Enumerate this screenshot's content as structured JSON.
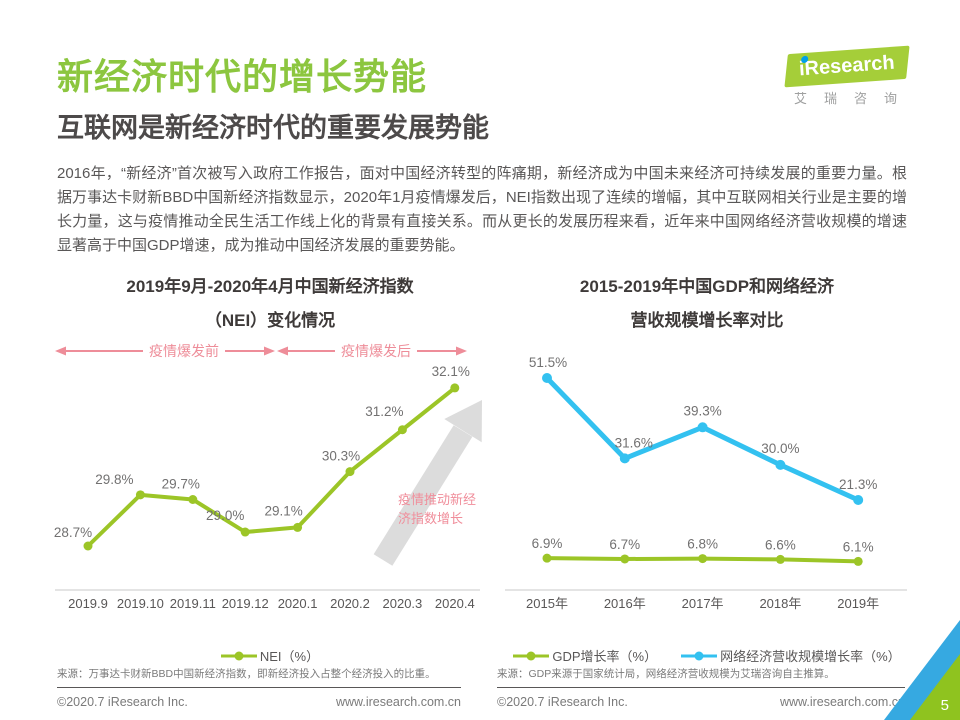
{
  "header": {
    "title": "新经济时代的增长势能",
    "subtitle": "互联网是新经济时代的重要发展势能",
    "body": "2016年，“新经济”首次被写入政府工作报告，面对中国经济转型的阵痛期，新经济成为中国未来经济可持续发展的重要力量。根据万事达卡财新BBD中国新经济指数显示，2020年1月疫情爆发后，NEI指数出现了连续的增幅，其中互联网相关行业是主要的增长力量，这与疫情推动全民生活工作线上化的背景有直接关系。而从更长的发展历程来看，近年来中国网络经济营收规模的增速显著高于中国GDP增速，成为推动中国经济发展的重要势能。"
  },
  "logo": {
    "brand_i": "i",
    "brand_rest": "Research",
    "caption": "艾瑞咨询"
  },
  "colors": {
    "title_green": "#8CC63F",
    "line_green": "#9CC527",
    "line_blue": "#33C1F0",
    "annotation_pink": "#EE8D99",
    "arrow_gray": "#DCDCDC",
    "corner_blue": "#36A9E1",
    "corner_green": "#8FC31F"
  },
  "chart_data": [
    {
      "type": "line",
      "title_line1": "2019年9月-2020年4月中国新经济指数",
      "title_line2": "（NEI）变化情况",
      "categories": [
        "2019.9",
        "2019.10",
        "2019.11",
        "2019.12",
        "2020.1",
        "2020.2",
        "2020.3",
        "2020.4"
      ],
      "series": [
        {
          "name": "NEI（%）",
          "color": "#9CC527",
          "values": [
            28.7,
            29.8,
            29.7,
            29.0,
            29.1,
            30.3,
            31.2,
            32.1
          ],
          "labels": [
            "28.7%",
            "29.8%",
            "29.7%",
            "29.0%",
            "29.1%",
            "30.3%",
            "31.2%",
            "32.1%"
          ]
        }
      ],
      "annotations": {
        "pre": "疫情爆发前",
        "post": "疫情爆发后",
        "arrow_note": "疫情推动新经济指数增长"
      },
      "ylim": [
        28.5,
        32.5
      ],
      "grid": false,
      "legend_position": "bottom",
      "source": "来源：万事达卡财新BBD中国新经济指数，即新经济投入占整个经济投入的比重。"
    },
    {
      "type": "line",
      "title_line1": "2015-2019年中国GDP和网络经济",
      "title_line2": "营收规模增长率对比",
      "categories": [
        "2015年",
        "2016年",
        "2017年",
        "2018年",
        "2019年"
      ],
      "series": [
        {
          "name": "GDP增长率（%）",
          "color": "#9CC527",
          "values": [
            6.9,
            6.7,
            6.8,
            6.6,
            6.1
          ],
          "labels": [
            "6.9%",
            "6.7%",
            "6.8%",
            "6.6%",
            "6.1%"
          ]
        },
        {
          "name": "网络经济营收规模增长率（%）",
          "color": "#33C1F0",
          "values": [
            51.5,
            31.6,
            39.3,
            30.0,
            21.3
          ],
          "labels": [
            "51.5%",
            "31.6%",
            "39.3%",
            "30.0%",
            "21.3%"
          ]
        }
      ],
      "ylim": [
        0,
        55
      ],
      "grid": false,
      "legend_position": "bottom",
      "source": "来源：GDP来源于国家统计局，网络经济营收规模为艾瑞咨询自主推算。"
    }
  ],
  "footer": {
    "copyright": "©2020.7 iResearch Inc.",
    "website": "www.iresearch.com.cn",
    "page_number": "5"
  }
}
